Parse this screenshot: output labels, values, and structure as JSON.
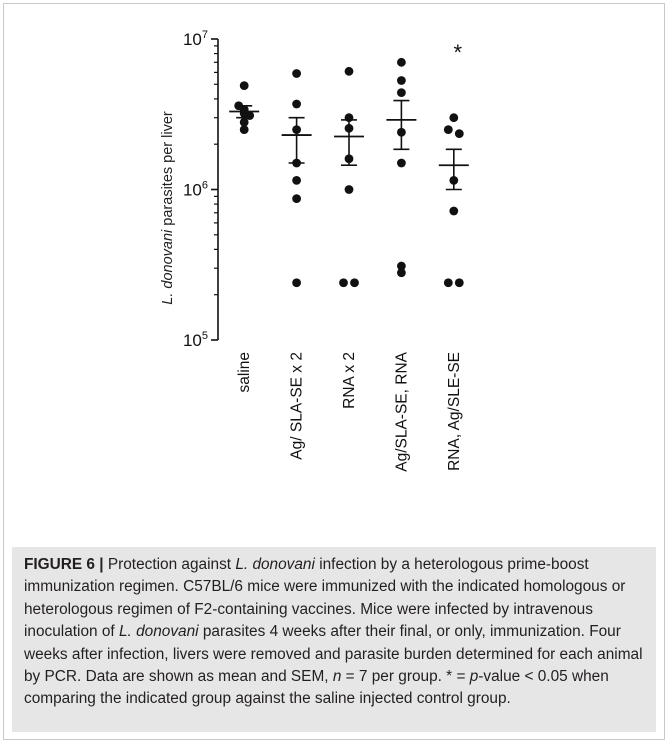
{
  "chart_data": {
    "type": "scatter",
    "ylabel_prefix": "L. donovani",
    "ylabel_suffix": " parasites per liver",
    "yscale": "log",
    "ylim": [
      100000,
      10000000
    ],
    "yticks": [
      {
        "value": 100000,
        "base": "10",
        "exp": "5"
      },
      {
        "value": 1000000,
        "base": "10",
        "exp": "6"
      },
      {
        "value": 10000000,
        "base": "10",
        "exp": "7"
      }
    ],
    "categories": [
      "saline",
      "Ag/ SLA-SE x 2",
      "RNA x 2",
      "Ag/SLA-SE, RNA",
      "RNA, Ag/SLE-SE"
    ],
    "groups": [
      {
        "points": [
          4900000,
          3600000,
          3400000,
          3200000,
          3100000,
          2800000,
          2500000
        ],
        "mean": 3300000,
        "sem_low": 3000000,
        "sem_high": 3600000,
        "annotation": ""
      },
      {
        "points": [
          5900000,
          3700000,
          2500000,
          1500000,
          1150000,
          870000,
          240000
        ],
        "mean": 2300000,
        "sem_low": 1500000,
        "sem_high": 3000000,
        "annotation": ""
      },
      {
        "points": [
          6100000,
          3000000,
          2550000,
          1600000,
          1000000,
          240000,
          240000
        ],
        "mean": 2250000,
        "sem_low": 1450000,
        "sem_high": 2900000,
        "annotation": ""
      },
      {
        "points": [
          7000000,
          5300000,
          4400000,
          2400000,
          1500000,
          310000,
          280000
        ],
        "mean": 2900000,
        "sem_low": 1850000,
        "sem_high": 3900000,
        "annotation": ""
      },
      {
        "points": [
          3000000,
          2500000,
          2350000,
          1150000,
          720000,
          240000,
          240000
        ],
        "mean": 1450000,
        "sem_low": 1000000,
        "sem_high": 1850000,
        "annotation": "*"
      }
    ]
  },
  "caption": {
    "label": "FIGURE 6 |",
    "pre": " Protection against ",
    "species": "L. donovani",
    "mid1": " infection by a heterologous prime-boost immunization regimen. C57BL/6 mice were immunized with the indicated homologous or heterologous regimen of F2-containing vaccines. Mice were infected by intravenous inoculation of ",
    "species2": "L. donovani",
    "mid2": " parasites 4 weeks after their final, or only, immunization. Four weeks after infection, livers were removed and parasite burden determined for each animal by PCR. Data are shown as mean and SEM, ",
    "n_var": "n",
    "mid3": " = 7 per group. * = ",
    "p_var": "p",
    "end": "-value < 0.05 when comparing the indicated group against the saline injected control group."
  }
}
